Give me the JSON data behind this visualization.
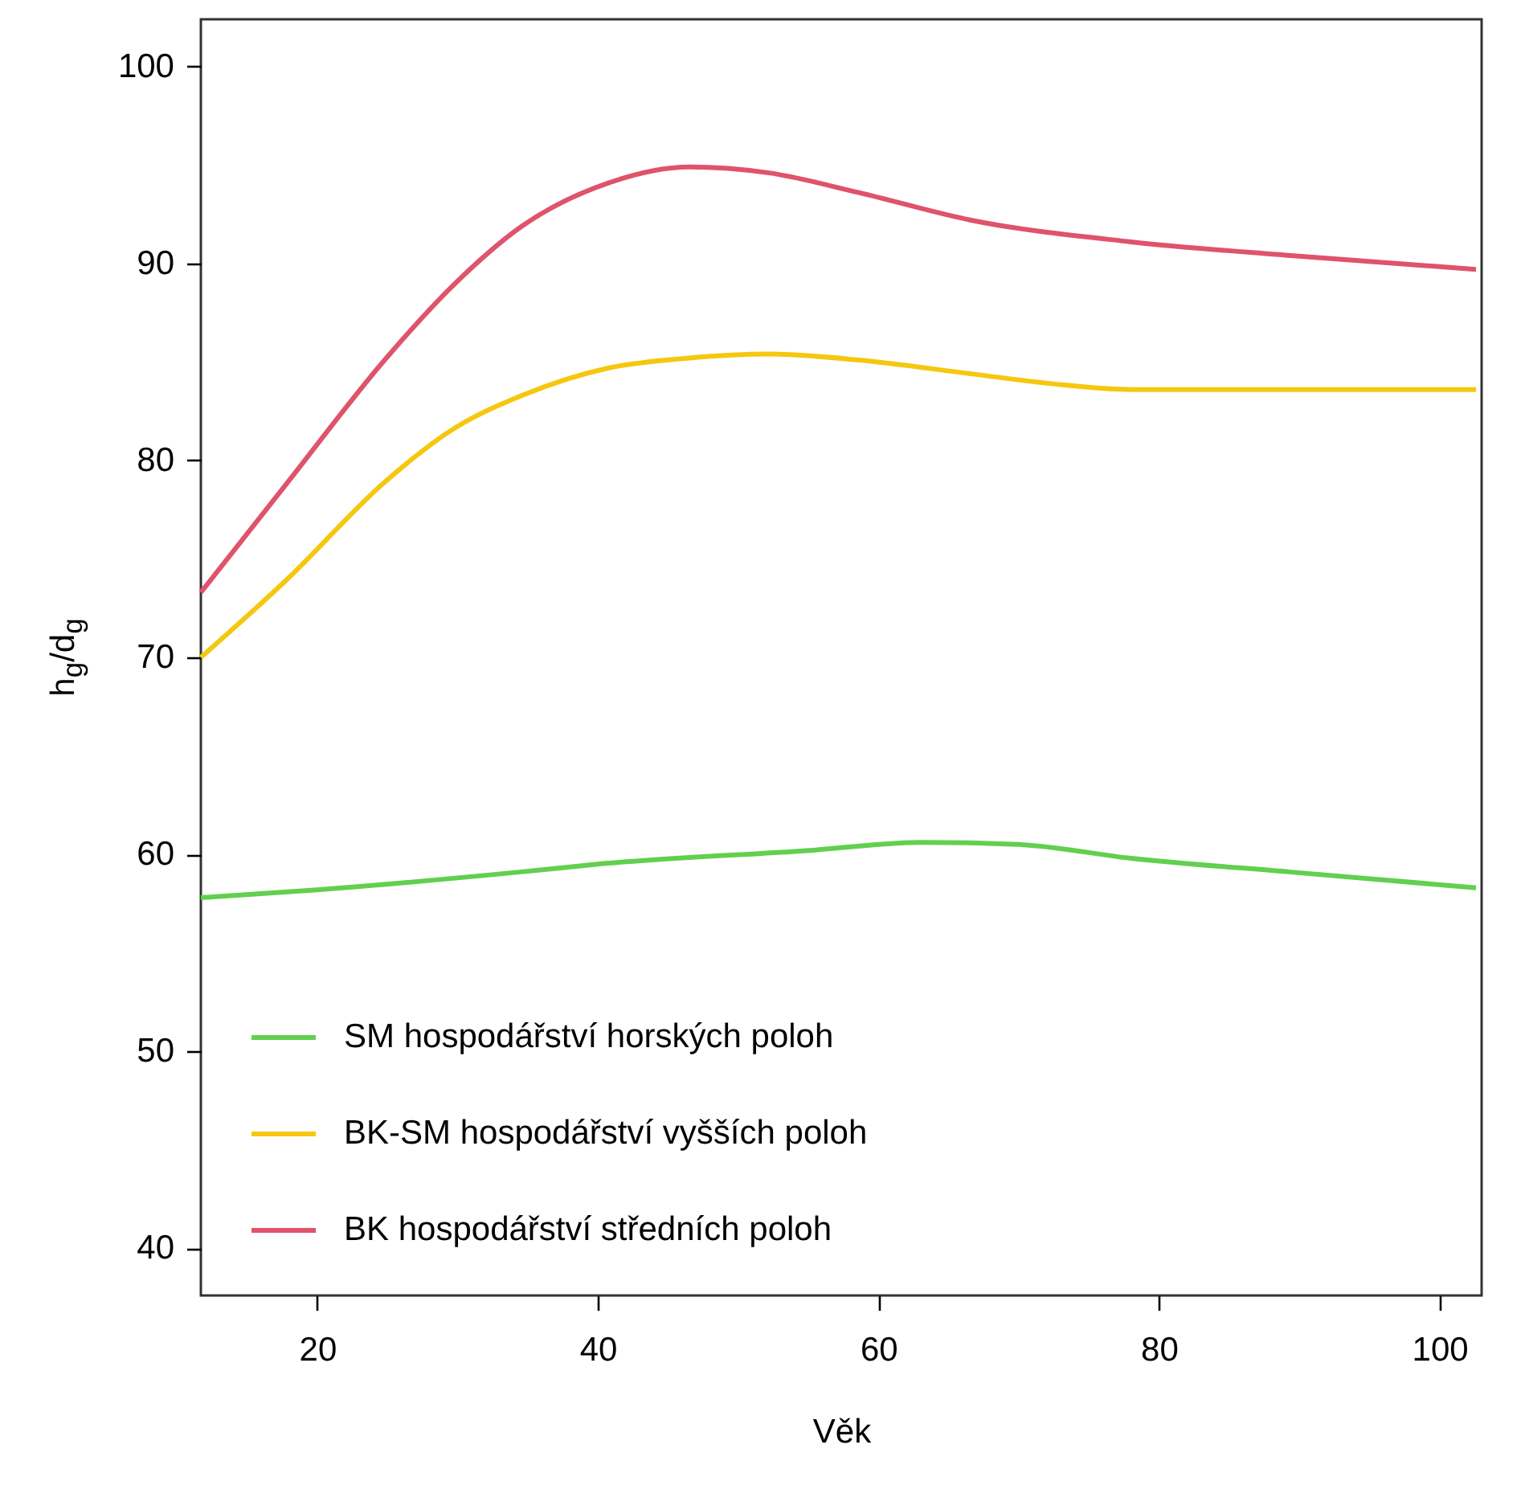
{
  "chart_data": {
    "type": "line",
    "xlabel": "Věk",
    "ylabel": "h$_{g}$/d$_{g}$",
    "xlim": [
      11.7,
      103
    ],
    "ylim": [
      37.6,
      102.4
    ],
    "xticks": [
      20,
      40,
      60,
      80,
      100
    ],
    "yticks": [
      40,
      50,
      60,
      70,
      80,
      90,
      100
    ],
    "grid": false,
    "legend": "bottom left",
    "line_style": "solid",
    "series": [
      {
        "name": "SM hospodářství horských poloh",
        "color": "#61d04f",
        "x": [
          11.7,
          20,
          34.4,
          40,
          55.1,
          63.1,
          70,
          78,
          89.4,
          102.6
        ],
        "values": [
          57.8,
          58.2,
          59.1,
          59.5,
          60.2,
          60.6,
          60.5,
          59.8,
          59.1,
          58.3
        ]
      },
      {
        "name": "BK-SM hospodářství vyšších poloh",
        "color": "#f5c710",
        "x": [
          11.7,
          17.9,
          24.8,
          29.7,
          34.6,
          40.8,
          46.5,
          52.2,
          58.6,
          66.6,
          72.3,
          78,
          89.4,
          102.6
        ],
        "values": [
          70.0,
          74.0,
          78.9,
          81.6,
          83.3,
          84.7,
          85.2,
          85.4,
          85.1,
          84.4,
          83.9,
          83.6,
          83.6,
          83.6
        ]
      },
      {
        "name": "BK hospodářství středních poloh",
        "color": "#df536b",
        "x": [
          11.7,
          17.9,
          24.8,
          29.7,
          34.6,
          40.8,
          46.5,
          52.2,
          58.6,
          66.6,
          78,
          89.4,
          102.6
        ],
        "values": [
          73.3,
          78.9,
          85.1,
          88.9,
          91.9,
          94.1,
          94.9,
          94.6,
          93.6,
          92.2,
          91.1,
          90.4,
          89.7
        ]
      }
    ]
  }
}
